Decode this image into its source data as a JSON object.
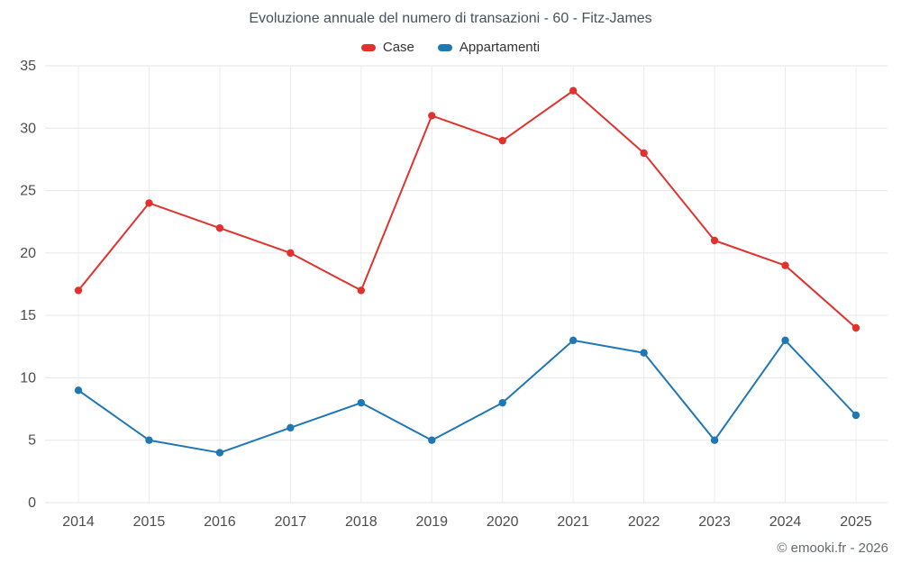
{
  "chart_data": {
    "type": "line",
    "title": "Evoluzione annuale del numero di transazioni - 60 - Fitz-James",
    "categories": [
      "2014",
      "2015",
      "2016",
      "2017",
      "2018",
      "2019",
      "2020",
      "2021",
      "2022",
      "2023",
      "2024",
      "2025"
    ],
    "series": [
      {
        "name": "Case",
        "color": "#e0332e",
        "values": [
          17,
          24,
          22,
          20,
          17,
          31,
          29,
          33,
          28,
          21,
          19,
          14
        ]
      },
      {
        "name": "Appartamenti",
        "color": "#1f77b4",
        "values": [
          9,
          5,
          4,
          6,
          8,
          5,
          8,
          13,
          12,
          5,
          13,
          7
        ]
      }
    ],
    "xlabel": "",
    "ylabel": "",
    "ylim": [
      0,
      35
    ],
    "yticks": [
      0,
      5,
      10,
      15,
      20,
      25,
      30,
      35
    ],
    "grid": true,
    "legend_position": "top"
  },
  "footer": {
    "credit": "© emooki.fr - 2026"
  }
}
